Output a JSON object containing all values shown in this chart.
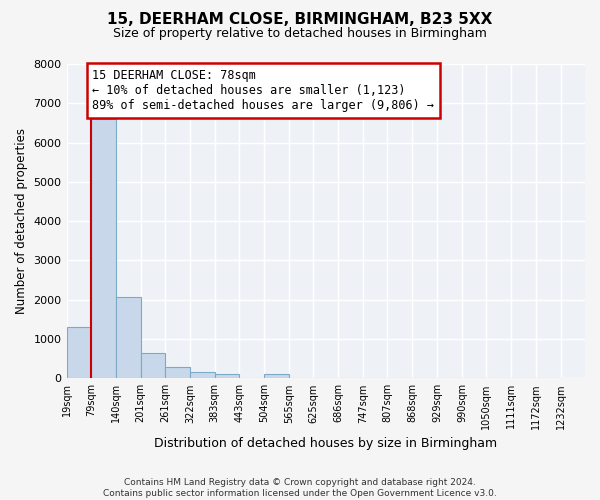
{
  "title_line1": "15, DEERHAM CLOSE, BIRMINGHAM, B23 5XX",
  "title_line2": "Size of property relative to detached houses in Birmingham",
  "xlabel": "Distribution of detached houses by size in Birmingham",
  "ylabel": "Number of detached properties",
  "bar_heights": [
    1300,
    6600,
    2075,
    650,
    300,
    150,
    100,
    0,
    100,
    0,
    0,
    0,
    0,
    0,
    0,
    0,
    0,
    0,
    0,
    0
  ],
  "bin_labels": [
    "19sqm",
    "79sqm",
    "140sqm",
    "201sqm",
    "261sqm",
    "322sqm",
    "383sqm",
    "443sqm",
    "504sqm",
    "565sqm",
    "625sqm",
    "686sqm",
    "747sqm",
    "807sqm",
    "868sqm",
    "929sqm",
    "990sqm",
    "1050sqm",
    "1111sqm",
    "1172sqm",
    "1232sqm"
  ],
  "bar_color": "#c8d8ea",
  "bar_edge_color": "#7aaac8",
  "bar_edge_width": 0.8,
  "ylim": [
    0,
    8000
  ],
  "yticks": [
    0,
    1000,
    2000,
    3000,
    4000,
    5000,
    6000,
    7000,
    8000
  ],
  "property_line_x": 79,
  "property_line_color": "#cc0000",
  "annotation_box_text": "15 DEERHAM CLOSE: 78sqm\n← 10% of detached houses are smaller (1,123)\n89% of semi-detached houses are larger (9,806) →",
  "annotation_box_edge_color": "#cc0000",
  "footer_line1": "Contains HM Land Registry data © Crown copyright and database right 2024.",
  "footer_line2": "Contains public sector information licensed under the Open Government Licence v3.0.",
  "fig_bg_color": "#f5f5f5",
  "plot_bg_color": "#eef2f7",
  "grid_color": "#ffffff",
  "bin_edges": [
    19,
    79,
    140,
    201,
    261,
    322,
    383,
    443,
    504,
    565,
    625,
    686,
    747,
    807,
    868,
    929,
    990,
    1050,
    1111,
    1172,
    1232
  ]
}
